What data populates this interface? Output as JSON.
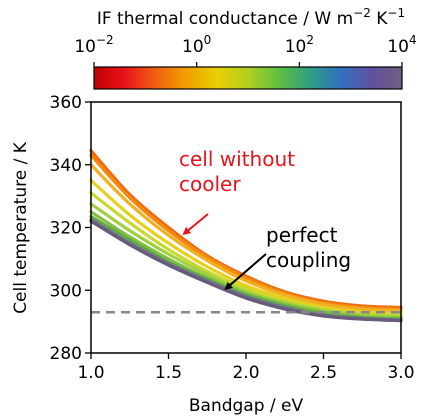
{
  "chart_data": {
    "type": "line",
    "xlabel": "Bandgap / eV",
    "ylabel": "Cell temperature / K",
    "xlim": [
      1.0,
      3.0
    ],
    "ylim": [
      280,
      360
    ],
    "x_ticks": [
      1.0,
      1.5,
      2.0,
      2.5,
      3.0
    ],
    "x_tick_labels": [
      "1.0",
      "1.5",
      "2.0",
      "2.5",
      "3.0"
    ],
    "y_ticks": [
      280,
      300,
      320,
      340,
      360
    ],
    "y_tick_labels": [
      "280",
      "300",
      "320",
      "340",
      "360"
    ],
    "colorbar": {
      "label_main": "IF thermal conductance / W m",
      "label_sup1": "−2",
      "label_mid": " K",
      "label_sup2": "−1",
      "scale": "log",
      "tick_base": "10",
      "tick_exponents": [
        "−2",
        "0",
        "2",
        "4"
      ],
      "tick_log_values": [
        -2,
        0,
        2,
        4
      ],
      "colormap": [
        "#c00000",
        "#e8141c",
        "#f06010",
        "#f0a000",
        "#e8d000",
        "#b0d020",
        "#60c040",
        "#30a080",
        "#3070c0",
        "#6050a0",
        "#706080"
      ]
    },
    "x": [
      1.0,
      1.25,
      1.5,
      1.75,
      2.0,
      2.25,
      2.5,
      2.75,
      3.0
    ],
    "series": [
      {
        "color": "#f06a10",
        "values": [
          344.5,
          330.5,
          320.0,
          311.0,
          304.5,
          299.5,
          296.5,
          295.0,
          294.5
        ]
      },
      {
        "color": "#f28a10",
        "values": [
          343.0,
          329.5,
          319.0,
          310.5,
          304.0,
          299.0,
          296.0,
          294.5,
          294.0
        ]
      },
      {
        "color": "#f2b020",
        "values": [
          340.0,
          327.5,
          317.5,
          309.5,
          303.0,
          298.5,
          295.5,
          294.0,
          293.5
        ]
      },
      {
        "color": "#e8d020",
        "values": [
          335.0,
          324.0,
          315.0,
          307.5,
          301.5,
          297.5,
          294.5,
          293.0,
          292.5
        ]
      },
      {
        "color": "#c8d830",
        "values": [
          331.0,
          321.5,
          313.0,
          306.0,
          300.5,
          296.5,
          294.0,
          292.5,
          292.0
        ]
      },
      {
        "color": "#a0d040",
        "values": [
          327.5,
          319.0,
          311.5,
          305.0,
          299.5,
          296.0,
          293.5,
          292.0,
          291.5
        ]
      },
      {
        "color": "#80c040",
        "values": [
          325.0,
          317.0,
          310.0,
          304.0,
          299.0,
          295.5,
          293.0,
          291.5,
          291.0
        ]
      },
      {
        "color": "#60a848",
        "values": [
          323.5,
          316.0,
          309.0,
          303.5,
          298.5,
          295.0,
          292.5,
          291.3,
          290.8
        ]
      },
      {
        "color": "#707090",
        "values": [
          322.5,
          315.0,
          308.5,
          303.0,
          298.0,
          294.5,
          292.0,
          291.0,
          290.5
        ]
      },
      {
        "color": "#6a5a7a",
        "values": [
          322.0,
          314.5,
          308.0,
          302.5,
          297.5,
          294.0,
          291.8,
          290.8,
          290.3
        ]
      }
    ],
    "reference_line": {
      "y": 293.0,
      "color": "#888888",
      "style": "dashed"
    },
    "annotations": [
      {
        "id": "no-cooler",
        "lines": [
          "cell without",
          "cooler"
        ],
        "color": "#e8141c",
        "arrow_to": {
          "x": 1.6,
          "y": 318.0
        }
      },
      {
        "id": "perfect",
        "lines": [
          "perfect",
          "coupling"
        ],
        "color": "#000000",
        "arrow_to": {
          "x": 1.87,
          "y": 300.5
        }
      }
    ],
    "grid": false,
    "legend": "none"
  }
}
